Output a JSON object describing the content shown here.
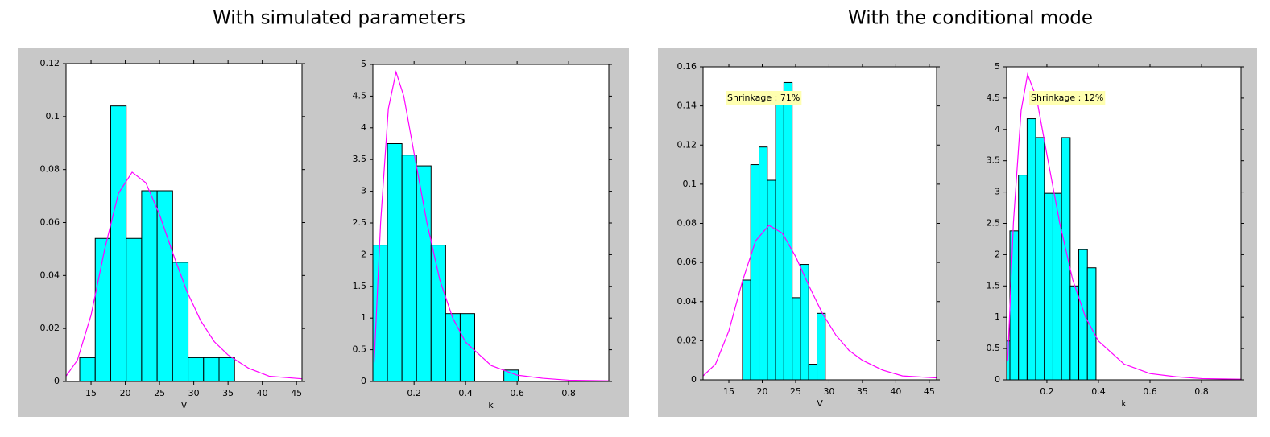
{
  "headings": [
    "With simulated parameters",
    "With the conditional mode"
  ],
  "chart_data": [
    {
      "type": "histogram",
      "x_label": "V",
      "color": "#00ffff",
      "bins": [
        13.35,
        15.61,
        17.87,
        20.13,
        22.39,
        24.65,
        26.91,
        29.17,
        31.43,
        33.69,
        35.95
      ],
      "values": [
        0.009,
        0.054,
        0.104,
        0.054,
        0.072,
        0.072,
        0.045,
        0.009,
        0.009,
        0.009
      ],
      "xlim": [
        11.35,
        45.8
      ],
      "xticks": [
        15,
        20,
        25,
        30,
        35,
        40,
        45
      ],
      "ylim": [
        0,
        0.12
      ],
      "yticks": [
        0,
        0.02,
        0.04,
        0.06,
        0.08,
        0.1,
        0.12
      ],
      "curve": {
        "color": "#ff00ff",
        "x": [
          11.35,
          13,
          15,
          17,
          19,
          21,
          23,
          25,
          27,
          29,
          31,
          33,
          35,
          38,
          41,
          45.8
        ],
        "values": [
          0.002,
          0.008,
          0.025,
          0.05,
          0.071,
          0.079,
          0.075,
          0.063,
          0.048,
          0.034,
          0.023,
          0.015,
          0.01,
          0.005,
          0.002,
          0.001
        ]
      }
    },
    {
      "type": "histogram",
      "x_label": "k",
      "color": "#00ffff",
      "bins": [
        0.04,
        0.0965,
        0.153,
        0.2095,
        0.266,
        0.3225,
        0.379,
        0.4355,
        0.492,
        0.5485,
        0.605
      ],
      "values": [
        2.15,
        3.75,
        3.57,
        3.4,
        2.15,
        1.07,
        1.07,
        0,
        0,
        0.18
      ],
      "xlim": [
        0.04,
        0.956
      ],
      "xticks": [
        0.2,
        0.4,
        0.6,
        0.8
      ],
      "ylim": [
        0,
        5
      ],
      "yticks": [
        0,
        0.5,
        1,
        1.5,
        2,
        2.5,
        3,
        3.5,
        4,
        4.5,
        5
      ],
      "curve": {
        "color": "#ff00ff",
        "x": [
          0.045,
          0.07,
          0.1,
          0.13,
          0.16,
          0.2,
          0.25,
          0.3,
          0.35,
          0.4,
          0.5,
          0.6,
          0.7,
          0.8,
          0.956
        ],
        "values": [
          0.3,
          2.5,
          4.3,
          4.88,
          4.5,
          3.6,
          2.5,
          1.6,
          1.0,
          0.62,
          0.25,
          0.1,
          0.05,
          0.02,
          0.01
        ]
      }
    },
    {
      "type": "histogram",
      "x_label": "V",
      "color": "#00ffff",
      "annotation": "Shrinkage : 71%",
      "bins": [
        17.04,
        18.28,
        19.52,
        20.76,
        22.0,
        23.24,
        24.48,
        25.72,
        26.96,
        28.2,
        29.44
      ],
      "values": [
        0.051,
        0.11,
        0.119,
        0.102,
        0.142,
        0.152,
        0.042,
        0.059,
        0.008,
        0.034
      ],
      "xlim": [
        11.14,
        46.1
      ],
      "xticks": [
        15,
        20,
        25,
        30,
        35,
        40,
        45
      ],
      "ylim": [
        0,
        0.16
      ],
      "yticks": [
        0,
        0.02,
        0.04,
        0.06,
        0.08,
        0.1,
        0.12,
        0.14,
        0.16
      ],
      "curve": {
        "color": "#ff00ff",
        "x": [
          11.14,
          13,
          15,
          17,
          19,
          21,
          23,
          25,
          27,
          29,
          31,
          33,
          35,
          38,
          41,
          46.1
        ],
        "values": [
          0.002,
          0.008,
          0.025,
          0.05,
          0.071,
          0.079,
          0.075,
          0.063,
          0.048,
          0.034,
          0.023,
          0.015,
          0.01,
          0.005,
          0.002,
          0.001
        ]
      }
    },
    {
      "type": "histogram",
      "x_label": "k",
      "color": "#00ffff",
      "annotation": "Shrinkage : 12%",
      "bins": [
        0.0231,
        0.0565,
        0.0899,
        0.1233,
        0.1567,
        0.1901,
        0.2235,
        0.2569,
        0.2903,
        0.3237,
        0.3571,
        0.3905
      ],
      "values": [
        0.62,
        2.38,
        3.27,
        4.17,
        3.87,
        2.98,
        2.98,
        3.87,
        1.5,
        2.08,
        1.79
      ],
      "xlim": [
        0.044,
        0.953
      ],
      "xticks": [
        0.2,
        0.4,
        0.6,
        0.8
      ],
      "ylim": [
        0,
        5
      ],
      "yticks": [
        0,
        0.5,
        1,
        1.5,
        2,
        2.5,
        3,
        3.5,
        4,
        4.5,
        5
      ],
      "curve": {
        "color": "#ff00ff",
        "x": [
          0.048,
          0.07,
          0.1,
          0.125,
          0.16,
          0.2,
          0.25,
          0.3,
          0.35,
          0.4,
          0.5,
          0.6,
          0.7,
          0.8,
          0.953
        ],
        "values": [
          0.3,
          2.5,
          4.3,
          4.88,
          4.5,
          3.6,
          2.5,
          1.6,
          1.0,
          0.62,
          0.25,
          0.1,
          0.05,
          0.02,
          0.01
        ]
      }
    }
  ]
}
